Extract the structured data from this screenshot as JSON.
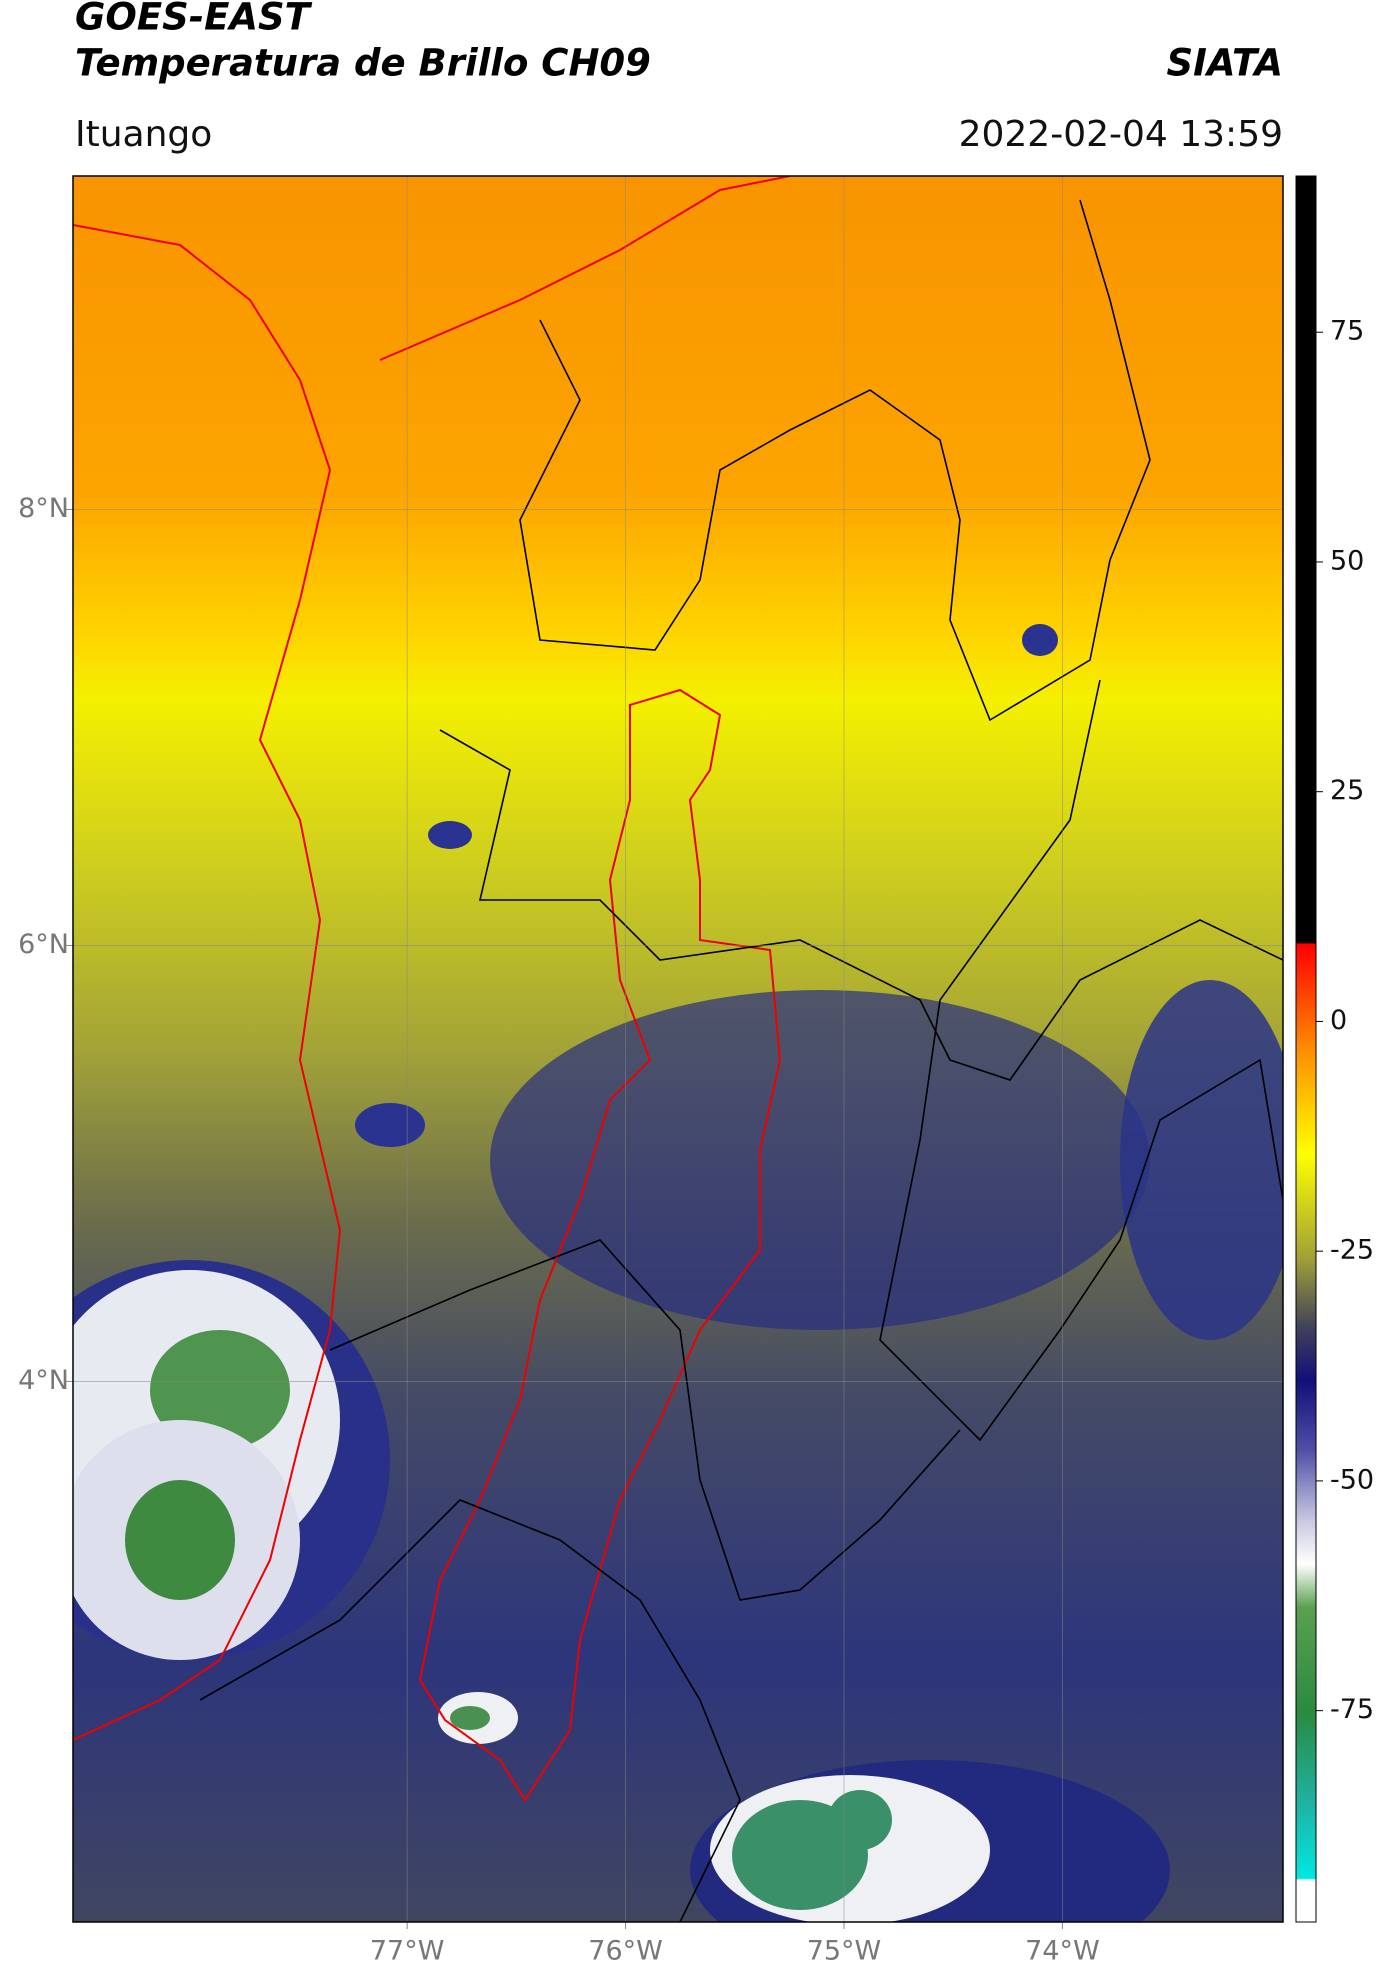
{
  "header": {
    "title": "GOES-EAST",
    "subtitle": "Temperatura de Brillo CH09",
    "source": "SIATA",
    "location": "Ituango",
    "timestamp": "2022-02-04 13:59"
  },
  "map": {
    "lonlim": [
      -78.53,
      -72.99
    ],
    "latlim": [
      1.52,
      9.53
    ],
    "lonticks": [
      {
        "value": -77,
        "label": "77°W"
      },
      {
        "value": -76,
        "label": "76°W"
      },
      {
        "value": -75,
        "label": "75°W"
      },
      {
        "value": -74,
        "label": "74°W"
      }
    ],
    "latticks": [
      {
        "value": 8,
        "label": "8°N"
      },
      {
        "value": 6,
        "label": "6°N"
      },
      {
        "value": 4,
        "label": "4°N"
      }
    ],
    "grid": true
  },
  "colorbar": {
    "lim": [
      -98,
      92
    ],
    "ticks": [
      75,
      50,
      25,
      0,
      -25,
      -50,
      -75
    ]
  }
}
